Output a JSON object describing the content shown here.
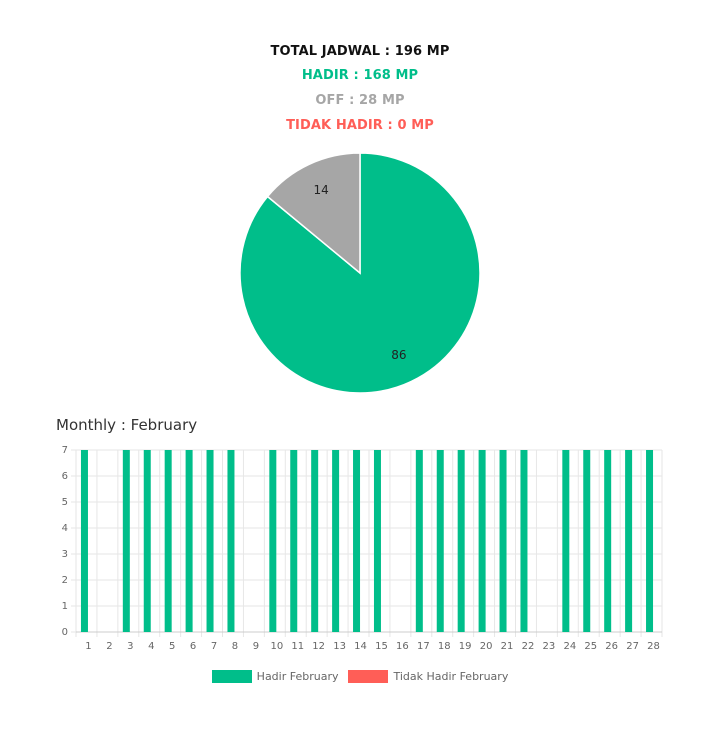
{
  "summary": {
    "total": "TOTAL JADWAL : 196 MP",
    "hadir": "HADIR : 168 MP",
    "off": "OFF : 28 MP",
    "tidak_hadir": "TIDAK HADIR : 0 MP"
  },
  "colors": {
    "hadir": "#00BE8A",
    "off": "#A6A6A6",
    "tidak_hadir": "#FF5E57",
    "grid": "#E6E6E6",
    "axis_text": "#666666"
  },
  "monthly_title": "Monthly : February",
  "chart_data": [
    {
      "type": "pie",
      "labels": [
        "",
        ""
      ],
      "values": [
        86,
        14
      ],
      "slice_colors": [
        "#00BE8A",
        "#A6A6A6"
      ],
      "data_labels": [
        "86",
        "14"
      ]
    },
    {
      "type": "bar",
      "categories": [
        "1",
        "2",
        "3",
        "4",
        "5",
        "6",
        "7",
        "8",
        "9",
        "10",
        "11",
        "12",
        "13",
        "14",
        "15",
        "16",
        "17",
        "18",
        "19",
        "20",
        "21",
        "22",
        "23",
        "24",
        "25",
        "26",
        "27",
        "28"
      ],
      "series": [
        {
          "name": "Hadir February",
          "color": "#00BE8A",
          "values": [
            7,
            0,
            7,
            7,
            7,
            7,
            7,
            7,
            0,
            7,
            7,
            7,
            7,
            7,
            7,
            0,
            7,
            7,
            7,
            7,
            7,
            7,
            0,
            7,
            7,
            7,
            7,
            7
          ]
        },
        {
          "name": "Tidak Hadir February",
          "color": "#FF5E57",
          "values": [
            0,
            0,
            0,
            0,
            0,
            0,
            0,
            0,
            0,
            0,
            0,
            0,
            0,
            0,
            0,
            0,
            0,
            0,
            0,
            0,
            0,
            0,
            0,
            0,
            0,
            0,
            0,
            0
          ]
        }
      ],
      "y_ticks": [
        "0",
        "1",
        "2",
        "3",
        "4",
        "5",
        "6",
        "7"
      ],
      "ylim": [
        0,
        7
      ],
      "grid": true,
      "legend_position": "bottom"
    }
  ]
}
